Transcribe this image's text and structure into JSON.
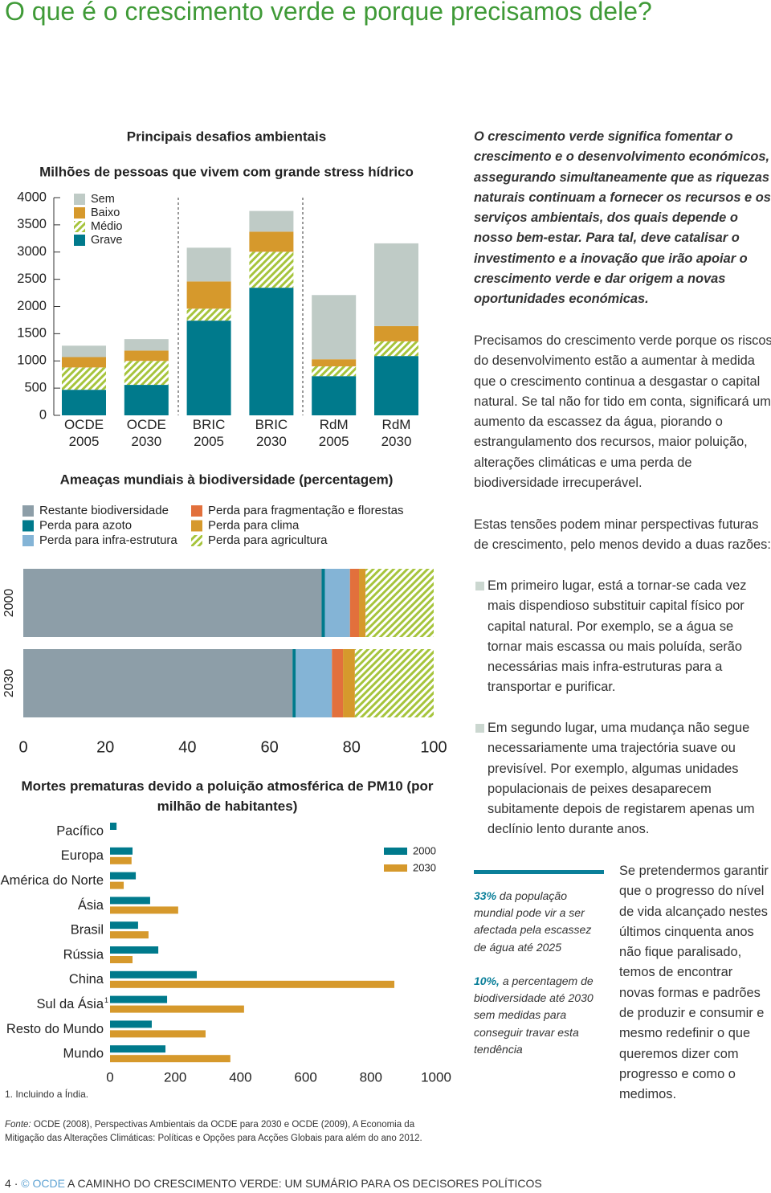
{
  "header": {
    "title": "O que é o crescimento verde e porque precisamos dele?"
  },
  "chart_data": [
    {
      "type": "bar",
      "stacked": true,
      "orientation": "vertical",
      "title": "Principais desafios ambientais",
      "subtitle": "Milhões de pessoas que vivem com grande stress hídrico",
      "categories": [
        "OCDE 2005",
        "OCDE 2030",
        "BRIC 2005",
        "BRIC 2030",
        "RdM 2005",
        "RdM 2030"
      ],
      "series": [
        {
          "name": "Grave",
          "color": "#007a8c",
          "values": [
            470,
            560,
            1740,
            2345,
            720,
            1090
          ]
        },
        {
          "name": "Médio",
          "color": "#a6c43c",
          "hatch": true,
          "values": [
            410,
            440,
            220,
            660,
            180,
            270
          ]
        },
        {
          "name": "Baixo",
          "color": "#d6992c",
          "values": [
            190,
            190,
            500,
            370,
            130,
            280
          ]
        },
        {
          "name": "Sem",
          "color": "#bfcbc6",
          "values": [
            210,
            210,
            620,
            380,
            1180,
            1520
          ]
        }
      ],
      "ylim": [
        0,
        4000
      ],
      "yticks": [
        0,
        500,
        1000,
        1500,
        2000,
        2500,
        3000,
        3500,
        4000
      ],
      "grid": false,
      "legend": "top-left"
    },
    {
      "type": "bar",
      "stacked": true,
      "orientation": "horizontal",
      "title": "Ameaças mundiais à biodiversidade (percentagem)",
      "categories": [
        "2000",
        "2030"
      ],
      "series": [
        {
          "name": "Restante biodiversidade",
          "color": "#8d9ea8",
          "values": [
            72.7,
            65.6
          ]
        },
        {
          "name": "Perda para azoto",
          "color": "#007a8c",
          "values": [
            0.8,
            0.8
          ]
        },
        {
          "name": "Perda para infra-estrutura",
          "color": "#84b4d6",
          "values": [
            6.1,
            8.8
          ]
        },
        {
          "name": "Perda para fragmentação e florestas",
          "color": "#e2703c",
          "values": [
            2.2,
            2.7
          ]
        },
        {
          "name": "Perda para clima",
          "color": "#d6992c",
          "values": [
            1.6,
            2.9
          ]
        },
        {
          "name": "Perda para agricultura",
          "color": "#a6c43c",
          "hatch": true,
          "values": [
            16.6,
            19.2
          ]
        }
      ],
      "xlim": [
        0,
        100
      ],
      "xticks": [
        0,
        20,
        40,
        60,
        80,
        100
      ],
      "grid": false,
      "legend": "top"
    },
    {
      "type": "bar",
      "stacked": false,
      "orientation": "horizontal",
      "title": "Mortes prematuras devido a poluição atmosférica de PM10 (por milhão de habitantes)",
      "categories": [
        "Pacífico",
        "Europa",
        "América do Norte",
        "Ásia",
        "Brasil",
        "Rússia",
        "China",
        "Sul da Ásia",
        "Resto do Mundo",
        "Mundo"
      ],
      "footnote_ref": "1",
      "series": [
        {
          "name": "2000",
          "color": "#007a8c",
          "values": [
            20,
            69,
            79,
            123,
            86,
            148,
            266,
            175,
            128,
            170
          ]
        },
        {
          "name": "2030",
          "color": "#d6992c",
          "values": [
            null,
            66,
            42,
            209,
            118,
            69,
            872,
            411,
            293,
            369
          ]
        }
      ],
      "xlim": [
        0,
        1000
      ],
      "xticks": [
        0,
        200,
        400,
        600,
        800,
        1000
      ],
      "grid": false,
      "legend": "top-right"
    }
  ],
  "footnote": "1. Incluindo a Índia.",
  "source": {
    "label": "Fonte:",
    "text": "OCDE (2008), Perspectivas Ambientais da OCDE para 2030 e OCDE (2009), A Economia da Mitigação das Alterações Climáticas: Políticas e Opções para Acções Globais para além do ano 2012."
  },
  "intro": "O crescimento verde significa fomentar o crescimento e o desenvolvimento económicos, assegurando simultaneamente que as riquezas naturais continuam a fornecer os recursos e os serviços ambientais, dos quais depende o nosso bem-estar. Para tal, deve catalisar o investimento e a inovação que irão apoiar o crescimento verde e dar origem a novas oportunidades económicas.",
  "paragraphs": [
    "Precisamos do crescimento verde porque os riscos do desenvolvimento estão a aumentar à medida que o crescimento continua a desgastar o capital natural. Se tal não for tido em conta, significará um aumento da escassez da água, piorando o estrangulamento dos recursos, maior poluição, alterações climáticas e uma perda de biodiversidade irrecuperável.",
    "Estas tensões podem minar perspectivas futuras de crescimento, pelo menos devido a duas razões:"
  ],
  "bullets": [
    "Em primeiro lugar, está a tornar-se cada vez mais dispendioso substituir capital físico por capital natural. Por exemplo, se a água se tornar mais escassa ou mais poluída, serão necessárias mais infra-estruturas para a transportar e purificar.",
    "Em segundo lugar, uma mudança não segue necessariamente uma trajectória suave ou previsível. Por exemplo, algumas unidades populacionais de peixes desaparecem subitamente depois de registarem apenas um declínio lento durante anos."
  ],
  "callouts": [
    {
      "figure": "33%",
      "text": "da população mundial pode vir a ser afectada pela escassez de água até 2025"
    },
    {
      "figure": "10%,",
      "text": "a percentagem de biodiversidade até 2030 sem medidas para conseguir travar esta tendência"
    }
  ],
  "closing": "Se pretendermos garantir que o progresso do nível de vida alcançado nestes últimos cinquenta anos não fique paralisado, temos de encontrar novas formas e padrões de produzir e consumir e mesmo redefinir o que queremos dizer com progresso e como o medimos.",
  "footer": {
    "page": "4",
    "separator": "·",
    "publisher": "© OCDE",
    "title": "A CAMINHO DO CRESCIMENTO VERDE: UM SUMÁRIO PARA OS DECISORES POLÍTICOS"
  }
}
